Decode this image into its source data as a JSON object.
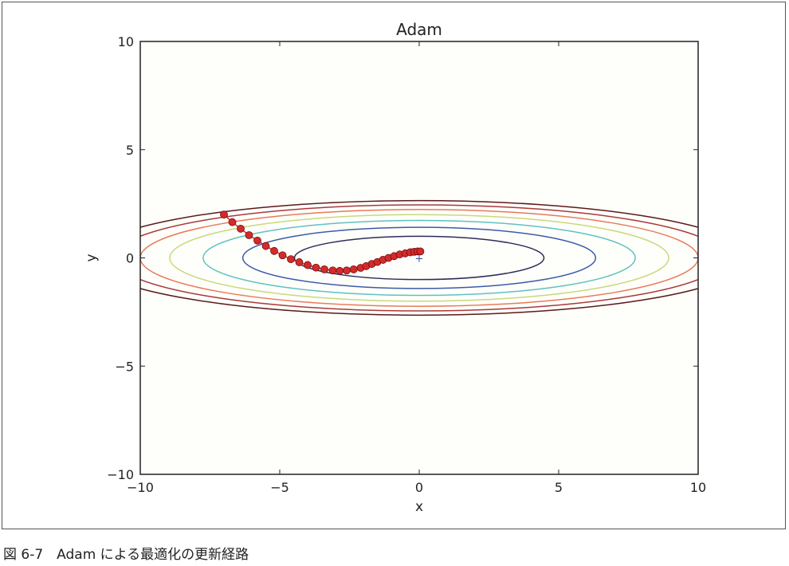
{
  "chart_data": {
    "type": "line",
    "title": "Adam",
    "xlabel": "x",
    "ylabel": "y",
    "xlim": [
      -10,
      10
    ],
    "ylim": [
      -10,
      10
    ],
    "xticks": [
      -10,
      -5,
      0,
      5,
      10
    ],
    "yticks": [
      -10,
      -5,
      0,
      5,
      10
    ],
    "xtick_labels": [
      "−10",
      "−5",
      "0",
      "5",
      "10"
    ],
    "ytick_labels": [
      "−10",
      "−5",
      "0",
      "5",
      "10"
    ],
    "grid": false,
    "function": "f(x, y) = x^2/20 + y^2",
    "contours": [
      {
        "level": 1,
        "color": "#2e2c5a"
      },
      {
        "level": 2,
        "color": "#3d5aa8"
      },
      {
        "level": 3,
        "color": "#61c1bf"
      },
      {
        "level": 4,
        "color": "#c9d97b"
      },
      {
        "level": 5,
        "color": "#e87a57"
      },
      {
        "level": 6,
        "color": "#a83a3a"
      },
      {
        "level": 7,
        "color": "#5a1a1a"
      }
    ],
    "minimum_marker": {
      "x": 0,
      "y": 0,
      "symbol": "+",
      "color": "#3d5aa8"
    },
    "path": {
      "name": "",
      "color": "#d62a2a",
      "points": [
        [
          -7.0,
          2.0
        ],
        [
          -6.7,
          1.65
        ],
        [
          -6.4,
          1.35
        ],
        [
          -6.1,
          1.05
        ],
        [
          -5.8,
          0.8
        ],
        [
          -5.5,
          0.55
        ],
        [
          -5.2,
          0.32
        ],
        [
          -4.9,
          0.12
        ],
        [
          -4.6,
          -0.06
        ],
        [
          -4.3,
          -0.2
        ],
        [
          -4.0,
          -0.33
        ],
        [
          -3.7,
          -0.45
        ],
        [
          -3.4,
          -0.53
        ],
        [
          -3.1,
          -0.58
        ],
        [
          -2.85,
          -0.6
        ],
        [
          -2.6,
          -0.58
        ],
        [
          -2.35,
          -0.53
        ],
        [
          -2.1,
          -0.46
        ],
        [
          -1.9,
          -0.38
        ],
        [
          -1.7,
          -0.28
        ],
        [
          -1.5,
          -0.19
        ],
        [
          -1.3,
          -0.09
        ],
        [
          -1.1,
          0.0
        ],
        [
          -0.9,
          0.08
        ],
        [
          -0.7,
          0.16
        ],
        [
          -0.5,
          0.21
        ],
        [
          -0.32,
          0.26
        ],
        [
          -0.18,
          0.28
        ],
        [
          -0.06,
          0.3
        ],
        [
          0.04,
          0.3
        ]
      ]
    }
  },
  "caption": "図 6-7　Adam による最適化の更新経路"
}
